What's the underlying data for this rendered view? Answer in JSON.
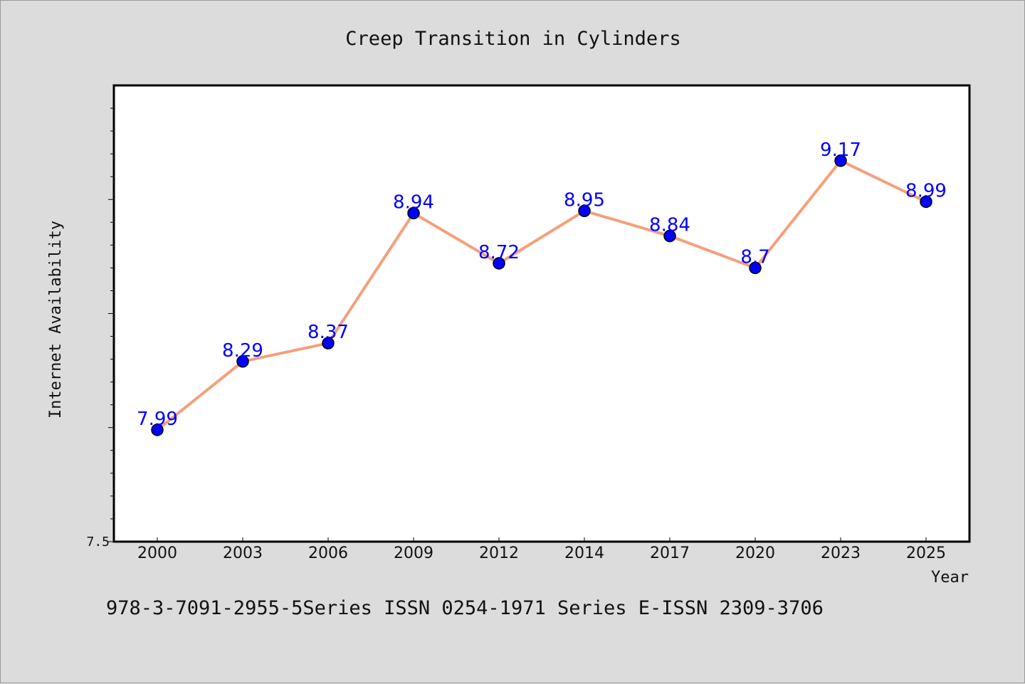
{
  "chart_data": {
    "type": "line",
    "title": "Creep Transition in Cylinders",
    "xlabel": "Year",
    "ylabel": "Internet Availability",
    "categories": [
      "2000",
      "2003",
      "2006",
      "2009",
      "2012",
      "2014",
      "2017",
      "2020",
      "2023",
      "2025"
    ],
    "series": [
      {
        "values": [
          7.99,
          8.29,
          8.37,
          8.94,
          8.72,
          8.95,
          8.84,
          8.7,
          9.17,
          8.99
        ],
        "labels": [
          "7.99",
          "8.29",
          "8.37",
          "8.94",
          "8.72",
          "8.95",
          "8.84",
          "8.7",
          "9.17",
          "8.99"
        ]
      }
    ],
    "ylim": [
      7.5,
      9.5
    ],
    "yticks_labeled": [
      "7.5"
    ],
    "grid": false,
    "line_color": "#f4a07a",
    "marker_color": "#0000ff",
    "label_color": "#0000ff"
  },
  "footer": "978-3-7091-2955-5Series ISSN 0254-1971 Series E-ISSN 2309-3706"
}
